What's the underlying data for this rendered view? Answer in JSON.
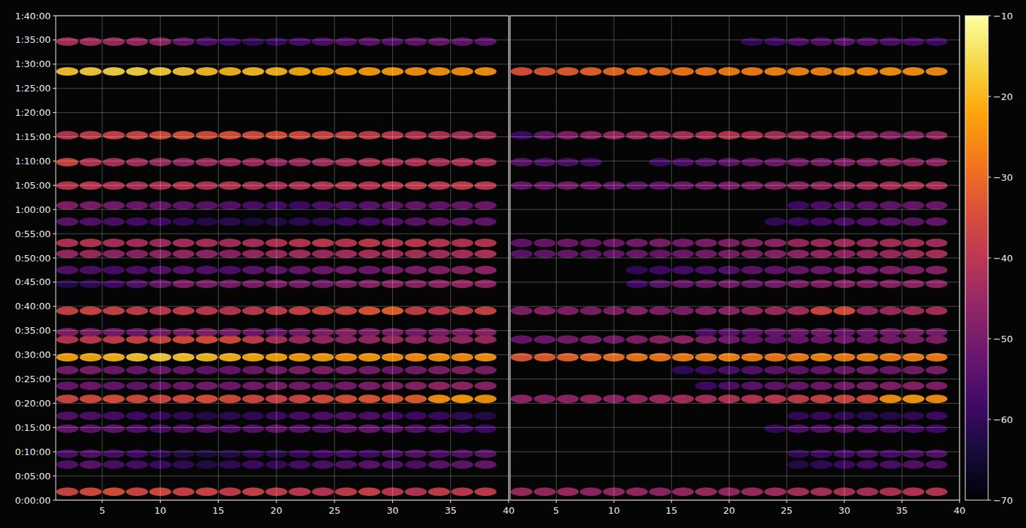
{
  "chart_data": {
    "type": "heatmap",
    "grid": true,
    "xlim": [
      1,
      40
    ],
    "xticks": [
      5,
      10,
      15,
      20,
      25,
      30,
      35,
      40
    ],
    "ylim": [
      0,
      6000
    ],
    "yticks": [
      {
        "value": 0,
        "label": "0:00:00"
      },
      {
        "value": 300,
        "label": "0:05:00"
      },
      {
        "value": 600,
        "label": "0:10:00"
      },
      {
        "value": 900,
        "label": "0:15:00"
      },
      {
        "value": 1200,
        "label": "0:20:00"
      },
      {
        "value": 1500,
        "label": "0:25:00"
      },
      {
        "value": 1800,
        "label": "0:30:00"
      },
      {
        "value": 2100,
        "label": "0:35:00"
      },
      {
        "value": 2400,
        "label": "0:40:00"
      },
      {
        "value": 2700,
        "label": "0:45:00"
      },
      {
        "value": 3000,
        "label": "0:50:00"
      },
      {
        "value": 3300,
        "label": "0:55:00"
      },
      {
        "value": 3600,
        "label": "1:00:00"
      },
      {
        "value": 3900,
        "label": "1:05:00"
      },
      {
        "value": 4200,
        "label": "1:10:00"
      },
      {
        "value": 4500,
        "label": "1:15:00"
      },
      {
        "value": 4800,
        "label": "1:20:00"
      },
      {
        "value": 5100,
        "label": "1:25:00"
      },
      {
        "value": 5400,
        "label": "1:30:00"
      },
      {
        "value": 5700,
        "label": "1:35:00"
      },
      {
        "value": 6000,
        "label": "1:40:00"
      }
    ],
    "colorbar": {
      "range": [
        -70,
        -10
      ],
      "ticks": [
        {
          "value": -10,
          "label": "−10"
        },
        {
          "value": -20,
          "label": "−20"
        },
        {
          "value": -30,
          "label": "−30"
        },
        {
          "value": -40,
          "label": "−40"
        },
        {
          "value": -50,
          "label": "−50"
        },
        {
          "value": -60,
          "label": "−60"
        },
        {
          "value": -70,
          "label": "−70"
        }
      ]
    },
    "x": [
      2,
      4,
      6,
      8,
      10,
      12,
      14,
      16,
      18,
      20,
      22,
      24,
      26,
      28,
      30,
      32,
      34,
      36,
      38
    ],
    "y": [
      105,
      440,
      575,
      885,
      1045,
      1255,
      1415,
      1610,
      1770,
      1990,
      2080,
      2345,
      2680,
      2850,
      3050,
      3185,
      3450,
      3650,
      3895,
      4185,
      4520,
      5310,
      5680
    ],
    "panels": [
      {
        "values": [
          [
            -36,
            -35,
            -34,
            -36,
            -35,
            -37,
            -36,
            -38,
            -37,
            -38,
            -39,
            -40,
            -38,
            -37,
            -39,
            -40,
            -38,
            -39,
            -38
          ],
          [
            -55,
            -54,
            -56,
            -57,
            -58,
            -60,
            -62,
            -60,
            -58,
            -59,
            -57,
            -56,
            -55,
            -54,
            -55,
            -56,
            -54,
            -53,
            -52
          ],
          [
            -56,
            -55,
            -57,
            -58,
            -60,
            -62,
            -63,
            -62,
            -60,
            -61,
            -59,
            -58,
            -57,
            -58,
            -56,
            -55,
            -56,
            -55,
            -54
          ],
          [
            -52,
            -54,
            -53,
            -55,
            -56,
            -55,
            -54,
            -56,
            -55,
            -53,
            -54,
            -55,
            -53,
            -52,
            -54,
            -55,
            -56,
            -57,
            -58
          ],
          [
            -55,
            -56,
            -57,
            -58,
            -59,
            -60,
            -62,
            -61,
            -60,
            -58,
            -57,
            -56,
            -55,
            -56,
            -57,
            -58,
            -59,
            -60,
            -62
          ],
          [
            -36,
            -35,
            -34,
            -35,
            -36,
            -35,
            -34,
            -35,
            -36,
            -37,
            -36,
            -35,
            -34,
            -33,
            -33,
            -32,
            -24,
            -23,
            -24
          ],
          [
            -52,
            -51,
            -52,
            -53,
            -52,
            -51,
            -50,
            -51,
            -50,
            -49,
            -50,
            -51,
            -50,
            -49,
            -48,
            -47,
            -46,
            -46,
            -47
          ],
          [
            -50,
            -49,
            -51,
            -52,
            -51,
            -52,
            -53,
            -52,
            -51,
            -50,
            -49,
            -48,
            -49,
            -50,
            -51,
            -50,
            -49,
            -48,
            -49
          ],
          [
            -22,
            -21,
            -20,
            -18,
            -17,
            -18,
            -19,
            -20,
            -21,
            -22,
            -23,
            -23,
            -24,
            -23,
            -24,
            -25,
            -24,
            -25,
            -24
          ],
          [
            -40,
            -39,
            -38,
            -37,
            -36,
            -35,
            -34,
            -35,
            -38,
            -42,
            -44,
            -45,
            -46,
            -45,
            -44,
            -45,
            -46,
            -45,
            -44
          ],
          [
            -48,
            -49,
            -50,
            -51,
            -50,
            -49,
            -48,
            -50,
            -51,
            -52,
            -50,
            -48,
            -47,
            -48,
            -49,
            -50,
            -49,
            -48,
            -47
          ],
          [
            -37,
            -36,
            -37,
            -38,
            -39,
            -38,
            -39,
            -40,
            -39,
            -38,
            -37,
            -36,
            -36,
            -33,
            -31,
            -38,
            -39,
            -38,
            -37
          ],
          [
            -62,
            -60,
            -58,
            -55,
            -52,
            -48,
            -49,
            -50,
            -49,
            -48,
            -49,
            -50,
            -48,
            -47,
            -46,
            -47,
            -46,
            -45,
            -46
          ],
          [
            -55,
            -56,
            -57,
            -56,
            -55,
            -54,
            -55,
            -56,
            -54,
            -53,
            -52,
            -51,
            -50,
            -51,
            -50,
            -49,
            -48,
            -47,
            -46
          ],
          [
            -45,
            -44,
            -46,
            -47,
            -46,
            -45,
            -46,
            -47,
            -45,
            -44,
            -43,
            -44,
            -43,
            -42,
            -43,
            -42,
            -43,
            -42,
            -41
          ],
          [
            -41,
            -40,
            -42,
            -43,
            -44,
            -43,
            -42,
            -43,
            -42,
            -41,
            -40,
            -39,
            -40,
            -39,
            -40,
            -39,
            -40,
            -41,
            -40
          ],
          [
            -54,
            -55,
            -56,
            -57,
            -58,
            -60,
            -62,
            -61,
            -63,
            -62,
            -61,
            -60,
            -58,
            -57,
            -55,
            -54,
            -53,
            -52,
            -53
          ],
          [
            -48,
            -49,
            -50,
            -51,
            -52,
            -53,
            -54,
            -55,
            -56,
            -57,
            -58,
            -56,
            -55,
            -54,
            -53,
            -52,
            -53,
            -52,
            -51
          ],
          [
            -40,
            -39,
            -41,
            -42,
            -41,
            -40,
            -41,
            -40,
            -41,
            -42,
            -41,
            -40,
            -39,
            -40,
            -39,
            -38,
            -39,
            -38,
            -39
          ],
          [
            -36,
            -40,
            -42,
            -43,
            -44,
            -45,
            -44,
            -43,
            -44,
            -45,
            -44,
            -43,
            -42,
            -41,
            -42,
            -41,
            -42,
            -41,
            -42
          ],
          [
            -40,
            -38,
            -37,
            -36,
            -35,
            -34,
            -35,
            -34,
            -35,
            -34,
            -35,
            -36,
            -37,
            -38,
            -39,
            -40,
            -41,
            -42,
            -42
          ],
          [
            -18,
            -17,
            -16,
            -16,
            -17,
            -18,
            -19,
            -20,
            -19,
            -20,
            -21,
            -22,
            -22,
            -23,
            -23,
            -24,
            -24,
            -25,
            -24
          ],
          [
            -42,
            -43,
            -44,
            -45,
            -46,
            -52,
            -56,
            -58,
            -60,
            -59,
            -57,
            -56,
            -55,
            -54,
            -55,
            -53,
            -52,
            -53,
            -54
          ]
        ]
      },
      {
        "values": [
          [
            -44,
            -45,
            -44,
            -46,
            -45,
            -45,
            -46,
            -45,
            -44,
            -45,
            -44,
            -43,
            -42,
            -42,
            -41,
            -42,
            -41,
            -40,
            -40
          ],
          [
            null,
            null,
            null,
            null,
            null,
            null,
            null,
            null,
            null,
            null,
            null,
            null,
            -62,
            -60,
            -58,
            -57,
            -56,
            -55,
            -55
          ],
          [
            null,
            null,
            null,
            null,
            null,
            null,
            null,
            null,
            null,
            null,
            null,
            null,
            -60,
            -58,
            -57,
            -56,
            -57,
            -56,
            -55
          ],
          [
            null,
            null,
            null,
            null,
            null,
            null,
            null,
            null,
            null,
            null,
            null,
            -60,
            -56,
            -55,
            -54,
            -55,
            -56,
            -57,
            -58
          ],
          [
            null,
            null,
            null,
            null,
            null,
            null,
            null,
            null,
            null,
            null,
            null,
            null,
            -60,
            -59,
            -60,
            -61,
            -62,
            -60,
            -58
          ],
          [
            -46,
            -47,
            -46,
            -45,
            -46,
            -45,
            -44,
            -43,
            -42,
            -41,
            -40,
            -39,
            -38,
            -37,
            -36,
            -35,
            -24,
            -23,
            -25
          ],
          [
            null,
            null,
            null,
            null,
            null,
            null,
            null,
            null,
            -58,
            -56,
            -54,
            -53,
            -52,
            -51,
            -50,
            -49,
            -48,
            -47,
            -48
          ],
          [
            null,
            null,
            null,
            null,
            null,
            null,
            null,
            -60,
            -58,
            -56,
            -55,
            -54,
            -53,
            -52,
            -51,
            -50,
            -51,
            -50,
            -49
          ],
          [
            -33,
            -32,
            -31,
            -30,
            -29,
            -28,
            -28,
            -27,
            -27,
            -26,
            -27,
            -28,
            -27,
            -26,
            -27,
            -26,
            -27,
            -26,
            -27
          ],
          [
            -52,
            -51,
            -50,
            -49,
            -50,
            -48,
            -47,
            -46,
            -48,
            -50,
            -52,
            -53,
            -52,
            -51,
            -50,
            -51,
            -50,
            -49,
            -48
          ],
          [
            null,
            null,
            null,
            null,
            null,
            null,
            null,
            null,
            -56,
            -54,
            -53,
            -52,
            -51,
            -50,
            -52,
            -51,
            -50,
            -49,
            -50
          ],
          [
            -48,
            -47,
            -48,
            -49,
            -48,
            -47,
            -48,
            -49,
            -47,
            -46,
            -45,
            -44,
            -43,
            -36,
            -34,
            -45,
            -44,
            -43,
            -42
          ],
          [
            null,
            null,
            null,
            null,
            null,
            -58,
            -54,
            -52,
            -51,
            -50,
            -51,
            -50,
            -49,
            -48,
            -47,
            -48,
            -47,
            -46,
            -46
          ],
          [
            null,
            null,
            null,
            null,
            null,
            -60,
            -58,
            -57,
            -56,
            -55,
            -54,
            -53,
            -52,
            -51,
            -50,
            -49,
            -48,
            -48,
            -47
          ],
          [
            -54,
            -53,
            -52,
            -53,
            -52,
            -51,
            -52,
            -51,
            -50,
            -49,
            -48,
            -47,
            -46,
            -45,
            -46,
            -45,
            -44,
            -43,
            -42
          ],
          [
            -53,
            -52,
            -51,
            -52,
            -51,
            -50,
            -49,
            -50,
            -49,
            -48,
            -47,
            -46,
            -45,
            -44,
            -43,
            -44,
            -43,
            -42,
            -43
          ],
          [
            null,
            null,
            null,
            null,
            null,
            null,
            null,
            null,
            null,
            null,
            null,
            -60,
            -58,
            -57,
            -56,
            -55,
            -54,
            -53,
            -52
          ],
          [
            null,
            null,
            null,
            null,
            null,
            null,
            null,
            null,
            null,
            null,
            null,
            null,
            -58,
            -56,
            -55,
            -54,
            -53,
            -52,
            -51
          ],
          [
            -52,
            -51,
            -50,
            -51,
            -52,
            -53,
            -52,
            -51,
            -50,
            -49,
            -48,
            -47,
            -46,
            -45,
            -44,
            -43,
            -42,
            -41,
            -42
          ],
          [
            -54,
            -55,
            -56,
            -57,
            null,
            null,
            -58,
            -56,
            -54,
            -53,
            -52,
            -51,
            -50,
            -49,
            -48,
            -47,
            -46,
            -47,
            -46
          ],
          [
            -58,
            -52,
            -48,
            -46,
            -45,
            -44,
            -43,
            -42,
            -41,
            -40,
            -41,
            -42,
            -43,
            -44,
            -45,
            -46,
            -47,
            -46,
            -45
          ],
          [
            -34,
            -33,
            -32,
            -31,
            -30,
            -29,
            -29,
            -28,
            -28,
            -27,
            -27,
            -26,
            -26,
            -26,
            -25,
            -25,
            -24,
            -24,
            -25
          ],
          [
            null,
            null,
            null,
            null,
            null,
            null,
            null,
            null,
            null,
            null,
            -60,
            -58,
            -56,
            -55,
            -54,
            -55,
            -56,
            -57,
            -58
          ]
        ]
      }
    ]
  }
}
